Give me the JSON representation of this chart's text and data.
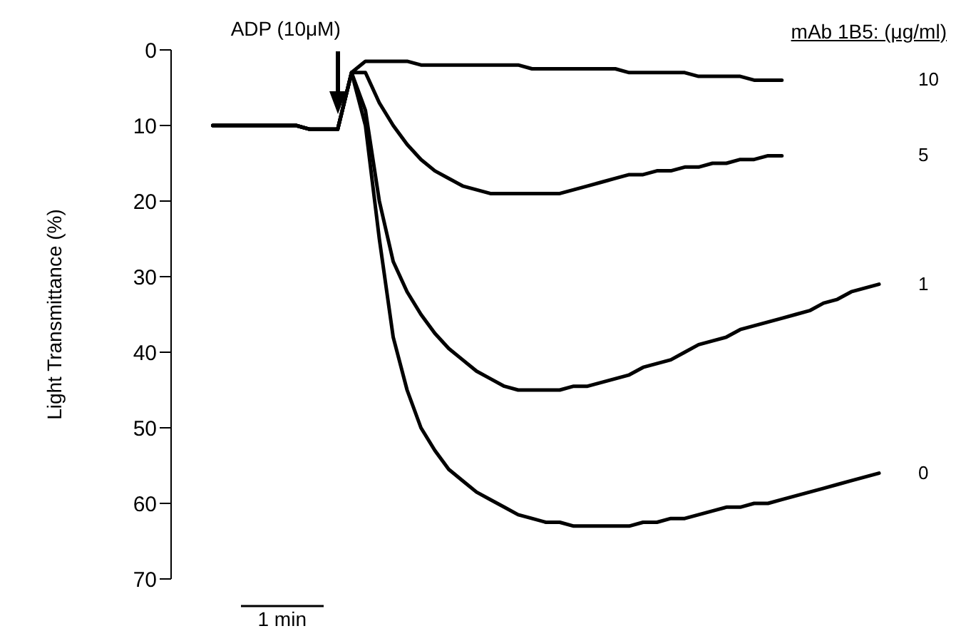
{
  "chart_data": {
    "type": "line",
    "legend_title": "mAb 1B5: (μg/ml)",
    "ylabel": "Light Transmittance (%)",
    "annotations": [
      "ADP (10μM)",
      "1 min"
    ],
    "categories": [
      null,
      null,
      null,
      null,
      null,
      null,
      null,
      null,
      null,
      null,
      null,
      null,
      null,
      null,
      null,
      null,
      null,
      null,
      null,
      null,
      null,
      null,
      null,
      null,
      null,
      null,
      null,
      null,
      null,
      null,
      null,
      null,
      null,
      null,
      null,
      null,
      null,
      null,
      null,
      null,
      null,
      null,
      null,
      null,
      null,
      null,
      null,
      null,
      null
    ],
    "series": [
      {
        "name": "10",
        "color": "#000000",
        "values": [
          10,
          10,
          10,
          10,
          10,
          10,
          10,
          10.5,
          10.5,
          10.5,
          3,
          1.5,
          1.5,
          1.5,
          1.5,
          2,
          2,
          2,
          2,
          2,
          2,
          2,
          2,
          2.5,
          2.5,
          2.5,
          2.5,
          2.5,
          2.5,
          2.5,
          3,
          3,
          3,
          3,
          3,
          3.5,
          3.5,
          3.5,
          3.5,
          4,
          4,
          4,
          null,
          null,
          null,
          null,
          null,
          null,
          null
        ]
      },
      {
        "name": "5",
        "color": "#000000",
        "values": [
          10,
          10,
          10,
          10,
          10,
          10,
          10,
          10.5,
          10.5,
          10.5,
          3,
          3,
          7,
          10,
          12.5,
          14.5,
          16,
          17,
          18,
          18.5,
          19,
          19,
          19,
          19,
          19,
          19,
          18.5,
          18,
          17.5,
          17,
          16.5,
          16.5,
          16,
          16,
          15.5,
          15.5,
          15,
          15,
          14.5,
          14.5,
          14,
          14,
          null,
          null,
          null,
          null,
          null,
          null,
          null
        ]
      },
      {
        "name": "1",
        "color": "#000000",
        "values": [
          10,
          10,
          10,
          10,
          10,
          10,
          10,
          10.5,
          10.5,
          10.5,
          3,
          8,
          20,
          28,
          32,
          35,
          37.5,
          39.5,
          41,
          42.5,
          43.5,
          44.5,
          45,
          45,
          45,
          45,
          44.5,
          44.5,
          44,
          43.5,
          43,
          42,
          41.5,
          41,
          40,
          39,
          38.5,
          38,
          37,
          36.5,
          36,
          35.5,
          35,
          34.5,
          33.5,
          33,
          32,
          31.5,
          31
        ]
      },
      {
        "name": "0",
        "color": "#000000",
        "values": [
          10,
          10,
          10,
          10,
          10,
          10,
          10,
          10.5,
          10.5,
          10.5,
          3,
          10,
          25,
          38,
          45,
          50,
          53,
          55.5,
          57,
          58.5,
          59.5,
          60.5,
          61.5,
          62,
          62.5,
          62.5,
          63,
          63,
          63,
          63,
          63,
          62.5,
          62.5,
          62,
          62,
          61.5,
          61,
          60.5,
          60.5,
          60,
          60,
          59.5,
          59,
          58.5,
          58,
          57.5,
          57,
          56.5,
          56
        ]
      }
    ],
    "ylim": [
      70,
      0
    ],
    "yticks": [
      0,
      10,
      20,
      30,
      40,
      50,
      60,
      70
    ],
    "grid": false,
    "legend": "right",
    "tick_labels": "y",
    "marker": "none",
    "line_style": "solid"
  }
}
